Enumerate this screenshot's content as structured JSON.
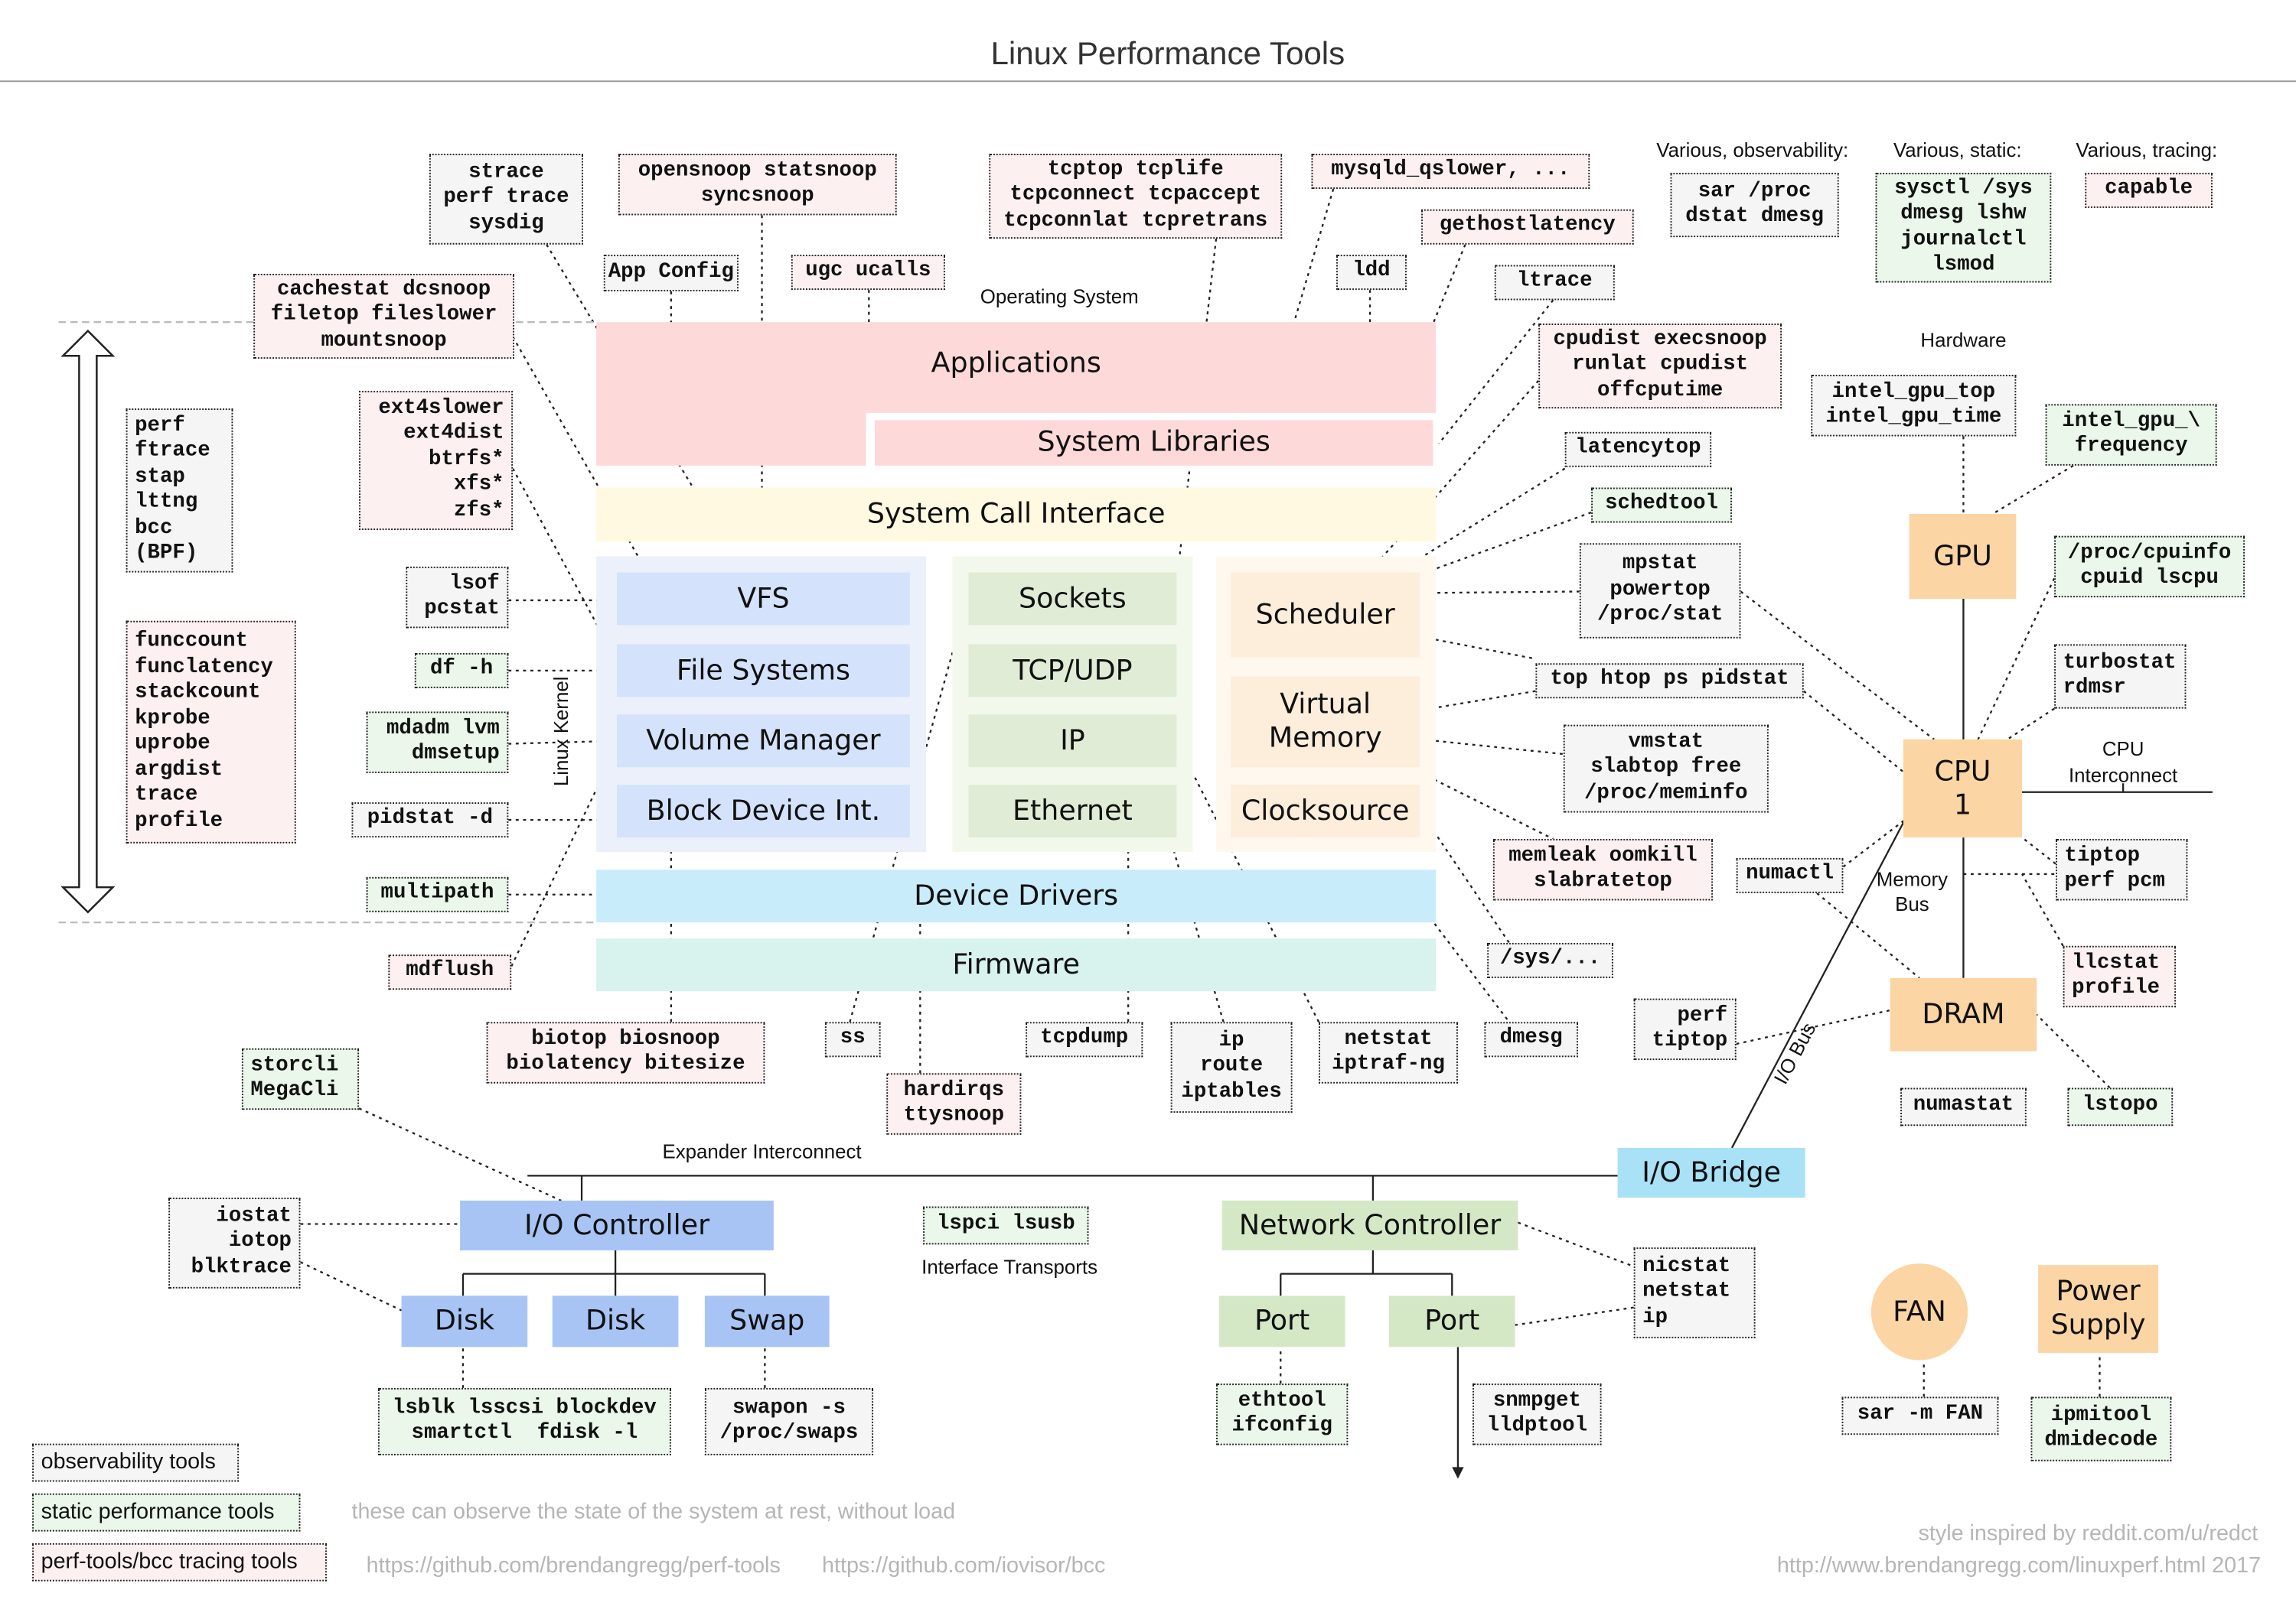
{
  "title": "Linux Performance Tools",
  "labels": {
    "operating_system": "Operating System",
    "linux_kernel": "Linux Kernel",
    "hardware": "Hardware",
    "various_observability": "Various, observability:",
    "various_static": "Various, static:",
    "various_tracing": "Various, tracing:",
    "cpu_interconnect_1": "CPU",
    "cpu_interconnect_2": "Interconnect",
    "memory_bus_1": "Memory",
    "memory_bus_2": "Bus",
    "io_bus": "I/O Bus",
    "expander_interconnect": "Expander Interconnect",
    "interface_transports": "Interface Transports"
  },
  "layers": {
    "applications": "Applications",
    "system_libraries": "System Libraries",
    "system_call_interface": "System Call Interface",
    "vfs": "VFS",
    "file_systems": "File Systems",
    "volume_manager": "Volume Manager",
    "block_device": "Block Device Int.",
    "sockets": "Sockets",
    "tcp_udp": "TCP/UDP",
    "ip": "IP",
    "ethernet": "Ethernet",
    "scheduler": "Scheduler",
    "virtual_memory_1": "Virtual",
    "virtual_memory_2": "Memory",
    "clocksource": "Clocksource",
    "device_drivers": "Device Drivers",
    "firmware": "Firmware"
  },
  "hardware": {
    "gpu": "GPU",
    "cpu_1": "CPU",
    "cpu_2": "1",
    "dram": "DRAM",
    "io_bridge": "I/O Bridge",
    "io_controller": "I/O Controller",
    "disk1": "Disk",
    "disk2": "Disk",
    "swap": "Swap",
    "network_controller": "Network Controller",
    "port1": "Port",
    "port2": "Port",
    "fan": "FAN",
    "power_1": "Power",
    "power_2": "Supply"
  },
  "colors": {
    "observability": "#f5f5f5",
    "static": "#eaf7ea",
    "tracing": "#fdf0f0",
    "applications": "#fdd9d9",
    "syscall": "#fef9e0",
    "kernel_storage": "#d4e3fb",
    "kernel_network": "#e0ecd6",
    "kernel_cpu": "#fdeedb",
    "device_drivers": "#c9ecfb",
    "firmware": "#d8f2ee",
    "hardware_core": "#fcd5a5",
    "io_bridge": "#a9e1f7",
    "io_controller": "#a7c4f5",
    "network_controller": "#d4e8c5"
  },
  "tools": [
    {
      "type": "observability",
      "lines": [
        "strace",
        "perf trace",
        "sysdig"
      ]
    },
    {
      "type": "tracing",
      "lines": [
        "opensnoop statsnoop",
        "syncsnoop"
      ]
    },
    {
      "type": "tracing",
      "lines": [
        "tcptop tcplife",
        "tcpconnect tcpaccept",
        "tcpconnlat tcpretrans"
      ]
    },
    {
      "type": "tracing",
      "lines": [
        "mysqld_qslower, ..."
      ]
    },
    {
      "type": "tracing",
      "lines": [
        "gethostlatency"
      ]
    },
    {
      "type": "observability",
      "lines": [
        "App Config"
      ]
    },
    {
      "type": "tracing",
      "lines": [
        "ugc ucalls"
      ]
    },
    {
      "type": "observability",
      "lines": [
        "ldd"
      ]
    },
    {
      "type": "observability",
      "lines": [
        "ltrace"
      ]
    },
    {
      "type": "tracing",
      "lines": [
        "cachestat dcsnoop",
        "filetop fileslower",
        "mountsnoop"
      ]
    },
    {
      "type": "tracing",
      "lines": [
        "cpudist execsnoop",
        "runlat cpudist",
        "offcputime"
      ]
    },
    {
      "type": "tracing",
      "lines": [
        "ext4slower",
        "ext4dist",
        "btrfs*",
        "xfs*",
        "zfs*"
      ]
    },
    {
      "type": "observability",
      "lines": [
        "perf",
        "ftrace",
        "stap",
        "lttng",
        "bcc",
        "(BPF)"
      ]
    },
    {
      "type": "observability",
      "lines": [
        "latencytop"
      ]
    },
    {
      "type": "static",
      "lines": [
        "schedtool"
      ]
    },
    {
      "type": "observability",
      "lines": [
        "mpstat",
        "powertop",
        "/proc/stat"
      ]
    },
    {
      "type": "observability",
      "lines": [
        "lsof",
        "pcstat"
      ]
    },
    {
      "type": "static",
      "lines": [
        "df -h"
      ]
    },
    {
      "type": "observability",
      "lines": [
        "top htop ps pidstat"
      ]
    },
    {
      "type": "static",
      "lines": [
        "mdadm lvm",
        "dmsetup"
      ]
    },
    {
      "type": "observability",
      "lines": [
        "vmstat",
        "slabtop free",
        "/proc/meminfo"
      ]
    },
    {
      "type": "tracing",
      "lines": [
        "funccount",
        "funclatency",
        "stackcount",
        "kprobe",
        "uprobe",
        "argdist",
        "trace",
        "profile"
      ]
    },
    {
      "type": "observability",
      "lines": [
        "pidstat -d"
      ]
    },
    {
      "type": "tracing",
      "lines": [
        "memleak oomkill",
        "slabratetop"
      ]
    },
    {
      "type": "observability",
      "lines": [
        "numactl"
      ]
    },
    {
      "type": "static",
      "lines": [
        "multipath"
      ]
    },
    {
      "type": "observability",
      "lines": [
        "/sys/..."
      ]
    },
    {
      "type": "tracing",
      "lines": [
        "mdflush"
      ]
    },
    {
      "type": "tracing",
      "lines": [
        "biotop biosnoop",
        "biolatency bitesize"
      ]
    },
    {
      "type": "observability",
      "lines": [
        "ss"
      ]
    },
    {
      "type": "observability",
      "lines": [
        "tcpdump"
      ]
    },
    {
      "type": "observability",
      "lines": [
        "ip",
        "route",
        "iptables"
      ]
    },
    {
      "type": "observability",
      "lines": [
        "netstat",
        "iptraf-ng"
      ]
    },
    {
      "type": "observability",
      "lines": [
        "dmesg"
      ]
    },
    {
      "type": "observability",
      "lines": [
        "perf",
        "tiptop"
      ]
    },
    {
      "type": "tracing",
      "lines": [
        "hardirqs",
        "ttysnoop"
      ]
    },
    {
      "type": "static",
      "lines": [
        "storcli",
        "MegaCli"
      ]
    },
    {
      "type": "observability",
      "lines": [
        "sar /proc",
        "dstat dmesg"
      ]
    },
    {
      "type": "static",
      "lines": [
        "sysctl /sys",
        "dmesg lshw",
        "journalctl",
        "lsmod"
      ]
    },
    {
      "type": "tracing",
      "lines": [
        "capable"
      ]
    },
    {
      "type": "observability",
      "lines": [
        "intel_gpu_top",
        "intel_gpu_time"
      ]
    },
    {
      "type": "static",
      "lines": [
        "intel_gpu_\\",
        "frequency"
      ]
    },
    {
      "type": "static",
      "lines": [
        "/proc/cpuinfo",
        "cpuid lscpu"
      ]
    },
    {
      "type": "observability",
      "lines": [
        "turbostat",
        "rdmsr"
      ]
    },
    {
      "type": "observability",
      "lines": [
        "tiptop",
        "perf pcm"
      ]
    },
    {
      "type": "tracing",
      "lines": [
        "llcstat",
        "profile"
      ]
    },
    {
      "type": "observability",
      "lines": [
        "numastat"
      ]
    },
    {
      "type": "static",
      "lines": [
        "lstopo"
      ]
    },
    {
      "type": "observability",
      "lines": [
        "iostat",
        "iotop",
        "blktrace"
      ]
    },
    {
      "type": "static",
      "lines": [
        "lspci lsusb"
      ]
    },
    {
      "type": "observability",
      "lines": [
        "nicstat",
        "netstat",
        "ip"
      ]
    },
    {
      "type": "static",
      "lines": [
        "lsblk lsscsi blockdev",
        "smartctl  fdisk -l"
      ]
    },
    {
      "type": "observability",
      "lines": [
        "swapon -s",
        "/proc/swaps"
      ]
    },
    {
      "type": "static",
      "lines": [
        "ethtool",
        "ifconfig"
      ]
    },
    {
      "type": "observability",
      "lines": [
        "snmpget",
        "lldptool"
      ]
    },
    {
      "type": "observability",
      "lines": [
        "sar -m FAN"
      ]
    },
    {
      "type": "static",
      "lines": [
        "ipmitool",
        "dmidecode"
      ]
    }
  ],
  "legend": {
    "observability": "observability tools",
    "static": "static performance tools",
    "tracing": "perf-tools/bcc tracing tools"
  },
  "notes": {
    "static_note": "these can observe the state of the system at rest, without load",
    "url_perf_tools": "https://github.com/brendangregg/perf-tools",
    "url_bcc": "https://github.com/iovisor/bcc",
    "credit": "style inspired by reddit.com/u/redct",
    "source": "http://www.brendangregg.com/linuxperf.html 2017"
  }
}
